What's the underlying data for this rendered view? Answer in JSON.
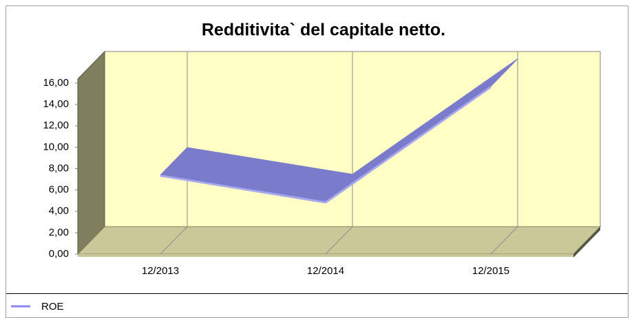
{
  "chart_data": {
    "type": "line3d",
    "title": "Redditivita` del capitale netto.",
    "categories": [
      "12/2013",
      "12/2014",
      "12/2015"
    ],
    "series": [
      {
        "name": "ROE",
        "color": "#7b7bcb",
        "values": [
          7.4,
          4.9,
          15.7
        ]
      }
    ],
    "ylim": [
      0,
      16
    ],
    "yticks": [
      {
        "value": 0,
        "label": "0,00"
      },
      {
        "value": 2,
        "label": "2,00"
      },
      {
        "value": 4,
        "label": "4,00"
      },
      {
        "value": 6,
        "label": "6,00"
      },
      {
        "value": 8,
        "label": "8,00"
      },
      {
        "value": 10,
        "label": "10,00"
      },
      {
        "value": 12,
        "label": "12,00"
      },
      {
        "value": 14,
        "label": "14,00"
      },
      {
        "value": 16,
        "label": "16,00"
      }
    ],
    "legend": "bottom-left"
  }
}
